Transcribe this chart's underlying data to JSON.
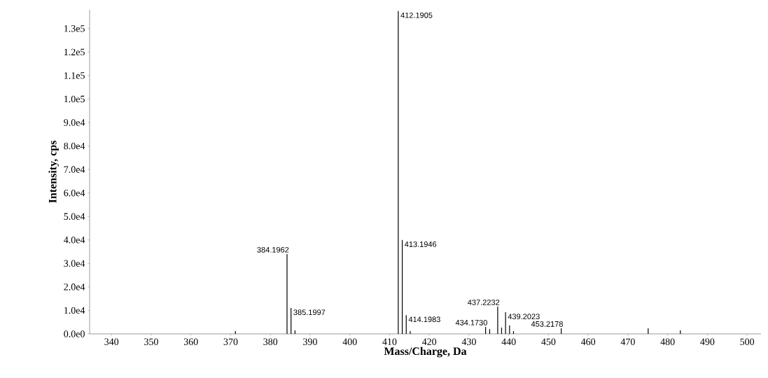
{
  "chart_data": {
    "type": "bar",
    "xlabel": "Mass/Charge, Da",
    "ylabel": "Intensity, cps",
    "color": "#000000",
    "x": [
      371.2,
      384.1962,
      385.1997,
      386.2,
      412.1905,
      413.1946,
      414.1983,
      415.2,
      434.173,
      435.2,
      437.2232,
      438.2,
      439.2023,
      440.2,
      441.2,
      453.2178,
      475.1,
      483.2
    ],
    "values": [
      1200,
      34000,
      11000,
      1500,
      137500,
      40000,
      8000,
      1200,
      3000,
      2000,
      11600,
      2700,
      9200,
      3600,
      1200,
      2400,
      2400,
      1500
    ],
    "xlim": [
      334.5,
      503.5
    ],
    "ylim": [
      0,
      138000
    ],
    "xticks": [
      340,
      350,
      360,
      370,
      380,
      390,
      400,
      410,
      420,
      430,
      440,
      450,
      460,
      470,
      480,
      490,
      500
    ],
    "yticks": [
      {
        "value": 0,
        "label": "0.0e0"
      },
      {
        "value": 10000,
        "label": "1.0e4"
      },
      {
        "value": 20000,
        "label": "2.0e4"
      },
      {
        "value": 30000,
        "label": "3.0e4"
      },
      {
        "value": 40000,
        "label": "4.0e4"
      },
      {
        "value": 50000,
        "label": "5.0e4"
      },
      {
        "value": 60000,
        "label": "6.0e4"
      },
      {
        "value": 70000,
        "label": "7.0e4"
      },
      {
        "value": 80000,
        "label": "8.0e4"
      },
      {
        "value": 90000,
        "label": "9.0e4"
      },
      {
        "value": 100000,
        "label": "1.0e5"
      },
      {
        "value": 110000,
        "label": "1.1e5"
      },
      {
        "value": 120000,
        "label": "1.2e5"
      },
      {
        "value": 130000,
        "label": "1.3e5"
      }
    ],
    "annotations": [
      {
        "text": "384.1962",
        "x": 384.1962,
        "y": 34000
      },
      {
        "text": "385.1997",
        "x": 385.1997,
        "y": 11000
      },
      {
        "text": "412.1905",
        "x": 412.1905,
        "y": 137500
      },
      {
        "text": "413.1946",
        "x": 413.1946,
        "y": 40000
      },
      {
        "text": "414.1983",
        "x": 414.1983,
        "y": 8000
      },
      {
        "text": "434.1730",
        "x": 434.173,
        "y": 3000
      },
      {
        "text": "437.2232",
        "x": 437.2232,
        "y": 11600
      },
      {
        "text": "439.2023",
        "x": 439.2023,
        "y": 9200
      },
      {
        "text": "453.2178",
        "x": 453.2178,
        "y": 2400
      }
    ]
  }
}
